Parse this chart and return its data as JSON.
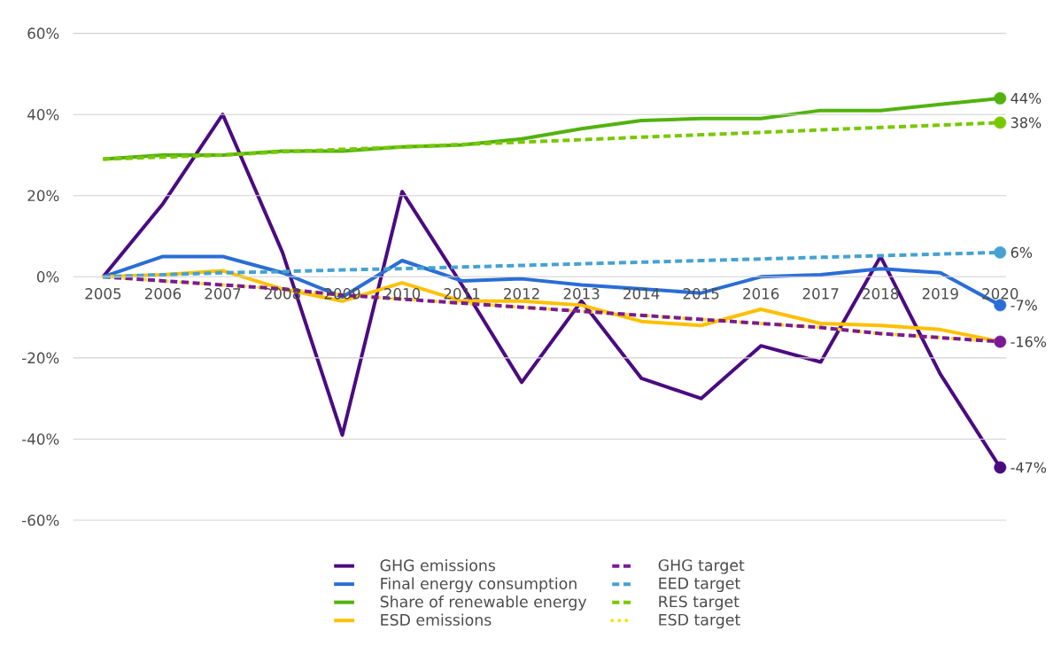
{
  "chart_data": {
    "type": "line",
    "categories": [
      "2005",
      "2006",
      "2007",
      "2008",
      "2009",
      "2010",
      "2011",
      "2012",
      "2013",
      "2014",
      "2015",
      "2016",
      "2017",
      "2018",
      "2019",
      "2020"
    ],
    "ylim": [
      -60,
      60
    ],
    "yticks": [
      {
        "value": -60,
        "label": "-60%"
      },
      {
        "value": -40,
        "label": "-40%"
      },
      {
        "value": -20,
        "label": "-20%"
      },
      {
        "value": 0,
        "label": "0%"
      },
      {
        "value": 20,
        "label": "20%"
      },
      {
        "value": 40,
        "label": "40%"
      },
      {
        "value": 60,
        "label": "60%"
      }
    ],
    "grid": "y",
    "legend": "bottom",
    "series": [
      {
        "name": "GHG emissions",
        "color": "#4b0b80",
        "line_style": "solid",
        "values": [
          0,
          18,
          40,
          6,
          -39,
          21,
          -2,
          -26,
          -6,
          -25,
          -30,
          -17,
          -21,
          5,
          -24,
          -47
        ],
        "value_labels": [
          null,
          null,
          null,
          null,
          null,
          null,
          null,
          null,
          null,
          null,
          null,
          null,
          null,
          null,
          null,
          "-47%"
        ]
      },
      {
        "name": "GHG target",
        "color": "#7a1a96",
        "line_style": "dashed",
        "values": [
          0,
          -1,
          -2,
          -3,
          -4.5,
          -5.5,
          -6.5,
          -7.5,
          -8.5,
          -9.5,
          -10.5,
          -11.5,
          -12.5,
          -14,
          -15,
          -16
        ],
        "value_labels": [
          null,
          null,
          null,
          null,
          null,
          null,
          null,
          null,
          null,
          null,
          null,
          null,
          null,
          null,
          null,
          "-16%"
        ]
      },
      {
        "name": "Final energy consumption",
        "color": "#2a6dd5",
        "line_style": "solid",
        "values": [
          0,
          5,
          5,
          1,
          -5,
          4,
          -1,
          -0.5,
          -2,
          -3,
          -4,
          0,
          0.5,
          2,
          1,
          -7
        ],
        "value_labels": [
          null,
          null,
          null,
          null,
          null,
          null,
          null,
          null,
          null,
          null,
          null,
          null,
          null,
          null,
          null,
          "-7%"
        ]
      },
      {
        "name": "EED target",
        "color": "#45a2d1",
        "line_style": "dashed",
        "values": [
          0,
          0.5,
          1,
          1.3,
          1.7,
          2,
          2.4,
          2.8,
          3.2,
          3.6,
          4,
          4.4,
          4.8,
          5.2,
          5.6,
          6
        ],
        "value_labels": [
          null,
          null,
          null,
          null,
          null,
          null,
          null,
          null,
          null,
          null,
          null,
          null,
          null,
          null,
          null,
          "6%"
        ]
      },
      {
        "name": "Share of renewable energy",
        "color": "#52b20e",
        "line_style": "solid",
        "values": [
          29,
          30,
          30,
          31,
          31,
          32,
          32.5,
          34,
          36.5,
          38.5,
          39,
          39,
          41,
          41,
          42.5,
          44
        ],
        "value_labels": [
          null,
          null,
          null,
          null,
          null,
          null,
          null,
          null,
          null,
          null,
          null,
          null,
          null,
          null,
          null,
          "44%"
        ]
      },
      {
        "name": "RES target",
        "color": "#78c800",
        "line_style": "dashed",
        "values": [
          29,
          29.5,
          30,
          30.8,
          31.4,
          32,
          32.6,
          33.2,
          33.8,
          34.4,
          35,
          35.6,
          36.2,
          36.8,
          37.4,
          38
        ],
        "value_labels": [
          null,
          null,
          null,
          null,
          null,
          null,
          null,
          null,
          null,
          null,
          null,
          null,
          null,
          null,
          null,
          "38%"
        ]
      },
      {
        "name": "ESD emissions",
        "color": "#ffc000",
        "line_style": "solid",
        "values": [
          0,
          0.5,
          1.5,
          -3,
          -6,
          -1.5,
          -6,
          -6,
          -7,
          -11,
          -12,
          -8,
          -11.5,
          -12,
          -13,
          -16
        ]
      },
      {
        "name": "ESD target",
        "color": "#ffe000",
        "line_style": "dotted",
        "values": [
          0,
          -1,
          -2,
          -3,
          -4.5,
          -5.5,
          -6.5,
          -7.5,
          -8.5,
          -9.5,
          -10.5,
          -11.5,
          -12.5,
          -14,
          -15,
          -16
        ]
      }
    ]
  }
}
